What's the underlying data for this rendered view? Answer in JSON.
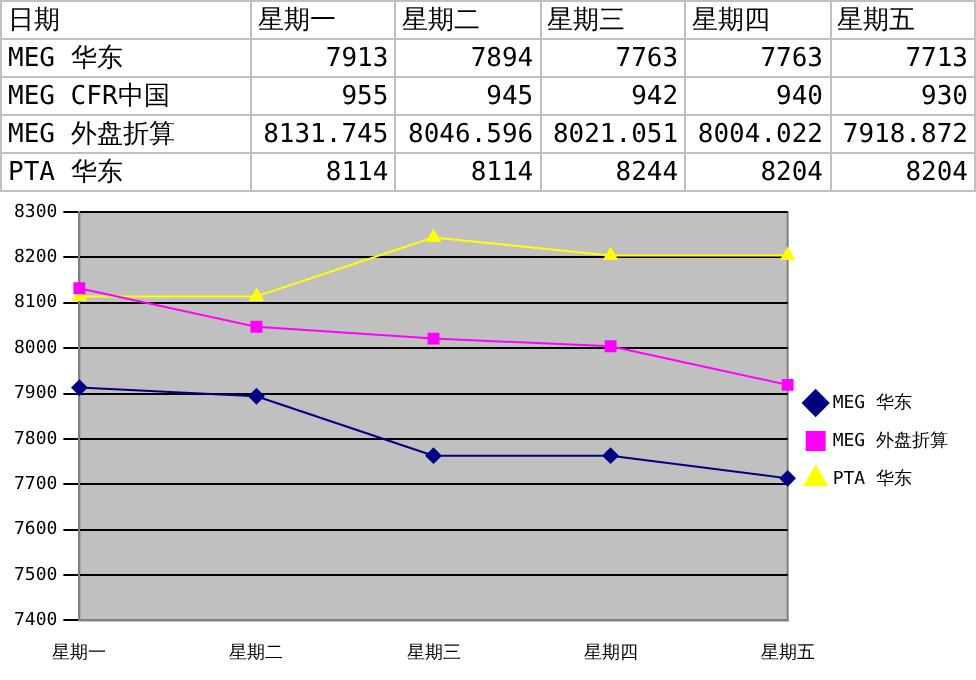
{
  "chart_data": {
    "type": "line",
    "categories": [
      "星期一",
      "星期二",
      "星期三",
      "星期四",
      "星期五"
    ],
    "series": [
      {
        "name": "MEG 华东",
        "color": "#000080",
        "marker": "diamond",
        "values": [
          7913,
          7894,
          7763,
          7763,
          7713
        ]
      },
      {
        "name": "MEG 外盘折算",
        "color": "#ff00ff",
        "marker": "square",
        "values": [
          8132,
          8047,
          8021,
          8004,
          7919
        ]
      },
      {
        "name": "PTA 华东",
        "color": "#ffff00",
        "marker": "triangle",
        "values": [
          8114,
          8114,
          8244,
          8204,
          8204
        ]
      }
    ],
    "ylim": [
      7400,
      8300
    ],
    "yticks": [
      7400,
      7500,
      7600,
      7700,
      7800,
      7900,
      8000,
      8100,
      8200,
      8300
    ],
    "grid": "y",
    "legend": "right",
    "annotations": [
      "日期",
      "星期一",
      "星期二",
      "星期三",
      "星期四",
      "星期五",
      "MEG 华东",
      "7913",
      "7894",
      "7763",
      "7763",
      "7713",
      "MEG CFR中国",
      "955",
      "945",
      "942",
      "940",
      "930",
      "MEG 外盘折算",
      "8131.745",
      "8046.596",
      "8021.051",
      "8004.022",
      "7918.872",
      "PTA 华东",
      "8114",
      "8114",
      "8244",
      "8204",
      "8204"
    ]
  }
}
